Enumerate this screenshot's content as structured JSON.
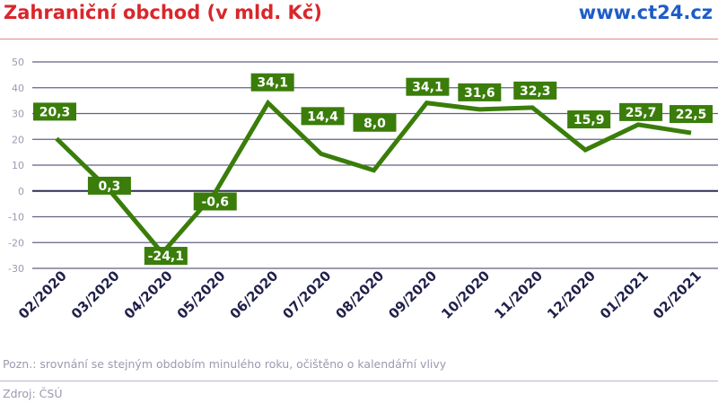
{
  "header": {
    "title": "Zahraniční obchod (v mld. Kč)",
    "brand": "www.ct24.cz"
  },
  "footer": {
    "note": "Pozn.: srovnání se stejným obdobím minulého roku, očištěno o kalendářní vlivy",
    "source": "Zdroj: ČSÚ"
  },
  "colors": {
    "line": "#3a7d0a",
    "label_bg": "#3a7d0a",
    "grid": "#2e2e5a",
    "axis_text": "#9a9ab2",
    "category_text": "#1f1f4a"
  },
  "chart_data": {
    "type": "line",
    "title": "Zahraniční obchod (v mld. Kč)",
    "categories": [
      "02/2020",
      "03/2020",
      "04/2020",
      "05/2020",
      "06/2020",
      "07/2020",
      "08/2020",
      "09/2020",
      "10/2020",
      "11/2020",
      "12/2020",
      "01/2021",
      "02/2021"
    ],
    "values": [
      20.3,
      0.3,
      -24.1,
      -0.6,
      34.1,
      14.4,
      8.0,
      34.1,
      31.6,
      32.3,
      15.9,
      25.7,
      22.5
    ],
    "data_labels": [
      "20,3",
      "0,3",
      "-24,1",
      "-0,6",
      "34,1",
      "14,4",
      "8,0",
      "34,1",
      "31,6",
      "32,3",
      "15,9",
      "25,7",
      "22,5"
    ],
    "yticks": [
      "50",
      "40",
      "30",
      "20",
      "10",
      "0",
      "-10",
      "-20",
      "-30"
    ],
    "ylim": [
      -30,
      50
    ],
    "grid": true,
    "legend": "none"
  }
}
